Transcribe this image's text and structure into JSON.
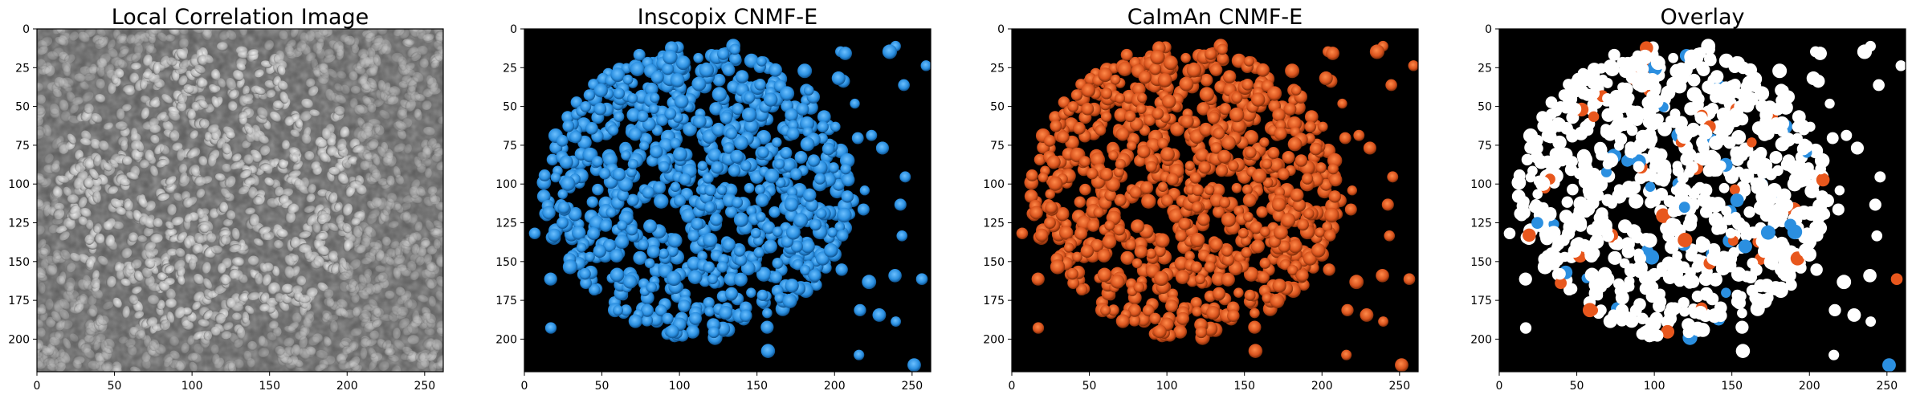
{
  "panels": [
    {
      "title": "Local Correlation Image",
      "kind": "correlation"
    },
    {
      "title": "Inscopix CNMF-E",
      "kind": "inscopix",
      "color": "#2b8fe0"
    },
    {
      "title": "CaImAn CNMF-E",
      "kind": "caiman",
      "color": "#d9541e"
    },
    {
      "title": "Overlay",
      "kind": "overlay",
      "colors": [
        "#ffffff",
        "#2b8fe0",
        "#e8571d"
      ]
    }
  ],
  "axes": {
    "x_ticks": [
      "0",
      "50",
      "100",
      "150",
      "200",
      "250"
    ],
    "x_values": [
      0,
      50,
      100,
      150,
      200,
      250
    ],
    "y_ticks": [
      "0",
      "25",
      "50",
      "75",
      "100",
      "125",
      "150",
      "175",
      "200"
    ],
    "y_values": [
      0,
      25,
      50,
      75,
      100,
      125,
      150,
      175,
      200
    ],
    "x_range": [
      0,
      262
    ],
    "y_range": [
      0,
      221
    ]
  }
}
